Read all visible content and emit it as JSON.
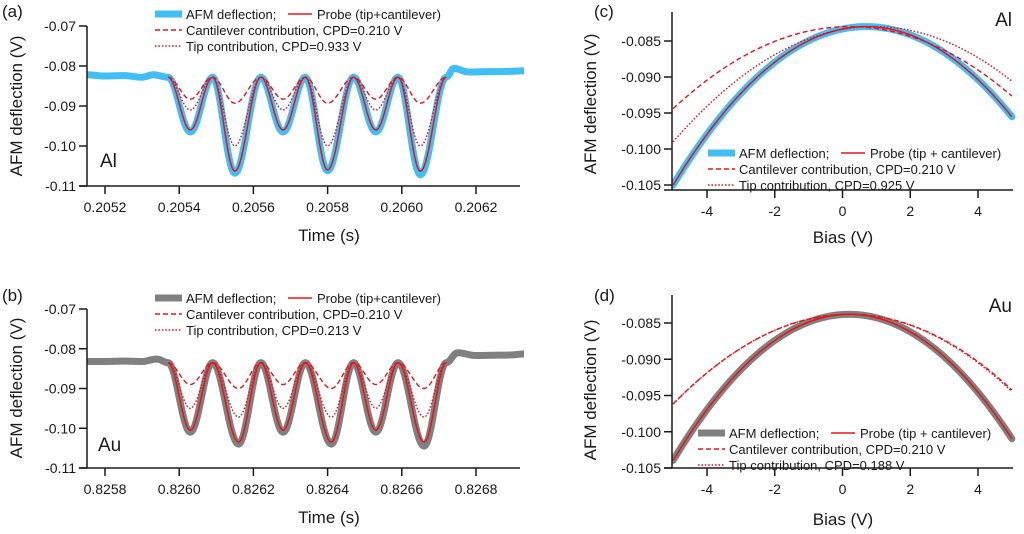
{
  "colors": {
    "al_data": "#41BFF5",
    "au_data": "#808080",
    "fit": "#E8141B",
    "axis": "#1a1a1a"
  },
  "chart_data": [
    {
      "id": "a",
      "type": "line",
      "panel_label": "(a)",
      "material": "Al",
      "xlabel": "Time (s)",
      "ylabel": "AFM deflection (V)",
      "xlim": [
        0.20515,
        0.20635
      ],
      "ylim": [
        -0.11,
        -0.07
      ],
      "xticks": [
        0.2052,
        0.2054,
        0.2056,
        0.2058,
        0.206,
        0.2062
      ],
      "xtick_labels": [
        "0.2052",
        "0.2054",
        "0.2056",
        "0.2058",
        "0.2060",
        "0.2062"
      ],
      "yticks": [
        -0.07,
        -0.08,
        -0.09,
        -0.1,
        -0.11
      ],
      "ytick_labels": [
        "-0.07",
        "-0.08",
        "-0.09",
        "-0.10",
        "-0.11"
      ],
      "legend": {
        "position": "top",
        "entries": [
          {
            "label": "AFM deflection;",
            "style": "thick"
          },
          {
            "label": "Probe (tip+cantilever)",
            "style": "solid"
          },
          {
            "label": "Cantilever contribution, CPD=0.210 V",
            "style": "dashed"
          },
          {
            "label": "Tip contribution, CPD=0.933 V",
            "style": "dotted"
          }
        ]
      },
      "oscillation": {
        "peak_value": -0.0828,
        "peak_times": [
          0.20537,
          0.20549,
          0.20562,
          0.20574,
          0.20587,
          0.20599,
          0.20612
        ],
        "min_times": [
          0.20543,
          0.20555,
          0.20568,
          0.2058,
          0.20593,
          0.20605
        ],
        "data_minima": [
          -0.0965,
          -0.1068,
          -0.0965,
          -0.1062,
          -0.0965,
          -0.1072
        ],
        "probe_minima": [
          -0.096,
          -0.1063,
          -0.096,
          -0.106,
          -0.096,
          -0.1063
        ],
        "cantilever_minima": [
          -0.0883,
          -0.0893,
          -0.0883,
          -0.0893,
          -0.0883,
          -0.0893
        ],
        "tip_minima": [
          -0.091,
          -0.1,
          -0.091,
          -0.1,
          -0.091,
          -0.1
        ]
      },
      "baseline_before": [
        [
          0.20515,
          -0.0822
        ],
        [
          0.2052,
          -0.0825
        ],
        [
          0.20525,
          -0.0824
        ],
        [
          0.2053,
          -0.0828
        ],
        [
          0.20533,
          -0.0822
        ],
        [
          0.20537,
          -0.0828
        ]
      ],
      "baseline_after": [
        [
          0.20612,
          -0.0828
        ],
        [
          0.20614,
          -0.0806
        ],
        [
          0.20618,
          -0.0815
        ],
        [
          0.20625,
          -0.0814
        ],
        [
          0.20635,
          -0.0812
        ]
      ]
    },
    {
      "id": "b",
      "type": "line",
      "panel_label": "(b)",
      "material": "Au",
      "xlabel": "Time (s)",
      "ylabel": "AFM deflection (V)",
      "xlim": [
        0.82575,
        0.82695
      ],
      "ylim": [
        -0.11,
        -0.07
      ],
      "xticks": [
        0.8258,
        0.826,
        0.8262,
        0.8264,
        0.8266,
        0.8268
      ],
      "xtick_labels": [
        "0.8258",
        "0.8260",
        "0.8262",
        "0.8264",
        "0.8266",
        "0.8268"
      ],
      "yticks": [
        -0.07,
        -0.08,
        -0.09,
        -0.1,
        -0.11
      ],
      "ytick_labels": [
        "-0.07",
        "-0.08",
        "-0.09",
        "-0.10",
        "-0.11"
      ],
      "legend": {
        "position": "top",
        "entries": [
          {
            "label": "AFM deflection;",
            "style": "thick"
          },
          {
            "label": "Probe (tip+cantilever)",
            "style": "solid"
          },
          {
            "label": "Cantilever contribution, CPD=0.210 V",
            "style": "dashed"
          },
          {
            "label": "Tip contribution, CPD=0.213 V",
            "style": "dotted"
          }
        ]
      },
      "oscillation": {
        "peak_value": -0.0835,
        "peak_times": [
          0.82597,
          0.82609,
          0.82622,
          0.82634,
          0.82647,
          0.82659,
          0.82672
        ],
        "min_times": [
          0.82603,
          0.82616,
          0.82628,
          0.82641,
          0.82653,
          0.82666
        ],
        "data_minima": [
          -0.101,
          -0.104,
          -0.101,
          -0.104,
          -0.101,
          -0.1045
        ],
        "probe_minima": [
          -0.1005,
          -0.1035,
          -0.1005,
          -0.1035,
          -0.1005,
          -0.1035
        ],
        "cantilever_minima": [
          -0.089,
          -0.09,
          -0.089,
          -0.09,
          -0.089,
          -0.09
        ],
        "tip_minima": [
          -0.095,
          -0.0972,
          -0.095,
          -0.0972,
          -0.095,
          -0.0972
        ]
      },
      "baseline_before": [
        [
          0.82575,
          -0.0832
        ],
        [
          0.8258,
          -0.0832
        ],
        [
          0.82585,
          -0.0831
        ],
        [
          0.8259,
          -0.0832
        ],
        [
          0.82594,
          -0.0826
        ],
        [
          0.82597,
          -0.0835
        ]
      ],
      "baseline_after": [
        [
          0.82672,
          -0.0835
        ],
        [
          0.82675,
          -0.081
        ],
        [
          0.8268,
          -0.0817
        ],
        [
          0.82688,
          -0.0816
        ],
        [
          0.82695,
          -0.0812
        ]
      ]
    },
    {
      "id": "c",
      "type": "line",
      "panel_label": "(c)",
      "material": "Al",
      "xlabel": "Bias (V)",
      "ylabel": "AFM deflection (V)",
      "xlim": [
        -5,
        5
      ],
      "ylim": [
        -0.1055,
        -0.0815
      ],
      "xticks": [
        -4,
        -2,
        0,
        2,
        4
      ],
      "xtick_labels": [
        "-4",
        "-2",
        "0",
        "2",
        "4"
      ],
      "yticks": [
        -0.085,
        -0.09,
        -0.095,
        -0.1,
        -0.105
      ],
      "ytick_labels": [
        "-0.085",
        "-0.090",
        "-0.095",
        "-0.100",
        "-0.105"
      ],
      "legend": {
        "position": "bottom-right",
        "entries": [
          {
            "label": "AFM deflection;",
            "style": "thick"
          },
          {
            "label": "Probe (tip + cantilever)",
            "style": "solid"
          },
          {
            "label": "Cantilever contribution, CPD=0.210 V",
            "style": "dashed"
          },
          {
            "label": "Tip contribution, CPD=0.925 V",
            "style": "dotted"
          }
        ]
      },
      "parabolas": {
        "data": {
          "vertex_x": 0.7,
          "vertex_y": -0.083,
          "curvature": 0.000677
        },
        "probe": {
          "vertex_x": 0.7,
          "vertex_y": -0.083,
          "curvature": 0.000677
        },
        "cantilever": {
          "vertex_x": 0.21,
          "vertex_y": -0.083,
          "curvature": 0.00042
        },
        "tip": {
          "vertex_x": 0.925,
          "vertex_y": -0.083,
          "curvature": 0.000456
        }
      }
    },
    {
      "id": "d",
      "type": "line",
      "panel_label": "(d)",
      "material": "Au",
      "xlabel": "Bias (V)",
      "ylabel": "AFM deflection (V)",
      "xlim": [
        -5,
        5
      ],
      "ylim": [
        -0.105,
        -0.081
      ],
      "xticks": [
        -4,
        -2,
        0,
        2,
        4
      ],
      "xtick_labels": [
        "-4",
        "-2",
        "0",
        "2",
        "4"
      ],
      "yticks": [
        -0.085,
        -0.09,
        -0.095,
        -0.1,
        -0.105
      ],
      "ytick_labels": [
        "-0.085",
        "-0.090",
        "-0.095",
        "-0.100",
        "-0.105"
      ],
      "legend": {
        "position": "bottom-right",
        "entries": [
          {
            "label": "AFM deflection;",
            "style": "thick"
          },
          {
            "label": "Probe (tip + cantilever)",
            "style": "solid"
          },
          {
            "label": "Cantilever contribution, CPD=0.210 V",
            "style": "dashed"
          },
          {
            "label": "Tip contribution, CPD=0.188 V",
            "style": "dotted"
          }
        ]
      },
      "parabolas": {
        "data": {
          "vertex_x": 0.2,
          "vertex_y": -0.0838,
          "curvature": 0.000745
        },
        "probe": {
          "vertex_x": 0.2,
          "vertex_y": -0.0838,
          "curvature": 0.000745
        },
        "cantilever": {
          "vertex_x": 0.21,
          "vertex_y": -0.0838,
          "curvature": 0.000455
        },
        "tip": {
          "vertex_x": 0.188,
          "vertex_y": -0.0838,
          "curvature": 0.00046
        }
      }
    }
  ]
}
